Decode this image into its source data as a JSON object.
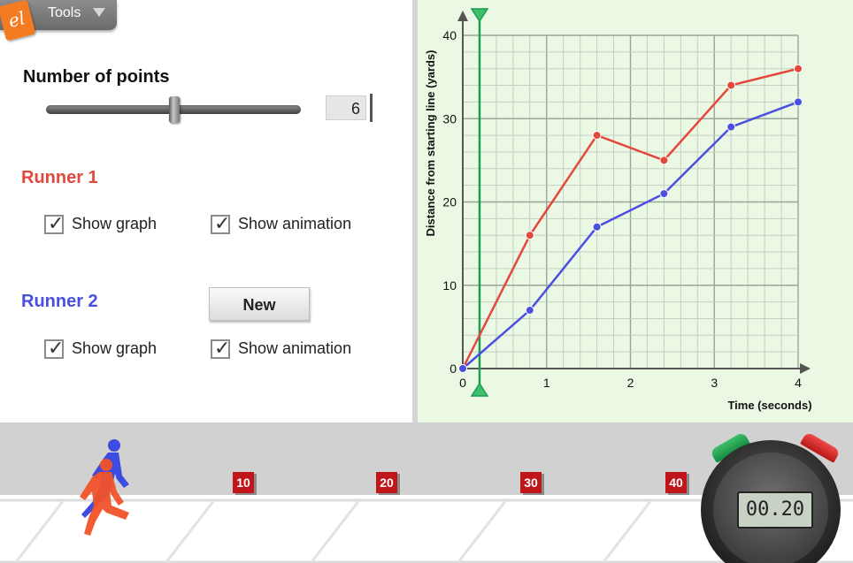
{
  "tools": {
    "label": "Tools",
    "logo_text": "el"
  },
  "controls": {
    "number_of_points_label": "Number of points",
    "number_of_points_value": "6",
    "slider_fraction": 0.48
  },
  "runner1": {
    "title": "Runner 1",
    "color": "#e4473b",
    "show_graph_label": "Show graph",
    "show_animation_label": "Show animation",
    "show_graph_checked": true,
    "show_animation_checked": true
  },
  "runner2": {
    "title": "Runner 2",
    "color": "#4a4fe0",
    "show_graph_label": "Show graph",
    "show_animation_label": "Show animation",
    "show_graph_checked": true,
    "show_animation_checked": true,
    "new_button_label": "New"
  },
  "chart_data": {
    "type": "line",
    "xlabel": "Time (seconds)",
    "ylabel": "Distance from starting line (yards)",
    "xlim": [
      0,
      4
    ],
    "ylim": [
      0,
      40
    ],
    "x_ticks": [
      "0",
      "1",
      "2",
      "3",
      "4"
    ],
    "y_ticks": [
      "0",
      "10",
      "20",
      "30",
      "40"
    ],
    "grid": true,
    "time_cursor": 0.2,
    "series": [
      {
        "color": "#e4473b",
        "x": [
          0,
          0.8,
          1.6,
          2.4,
          3.2,
          4.0
        ],
        "y": [
          0,
          16,
          28,
          25,
          34,
          36
        ]
      },
      {
        "color": "#4a4fe0",
        "x": [
          0,
          0.8,
          1.6,
          2.4,
          3.2,
          4.0
        ],
        "y": [
          0,
          7,
          17,
          21,
          29,
          32
        ]
      }
    ]
  },
  "track": {
    "markers": [
      "10",
      "20",
      "30",
      "40"
    ]
  },
  "stopwatch": {
    "time": "00.20"
  }
}
